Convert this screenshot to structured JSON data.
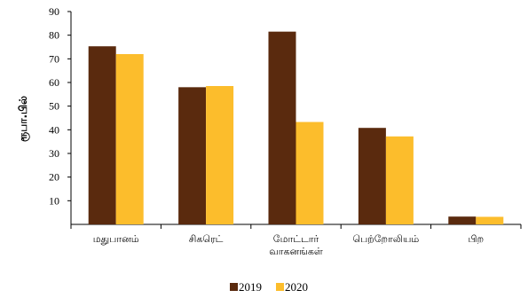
{
  "chart_data": {
    "type": "bar",
    "ylabel": "ரூபா.பில்",
    "xlabel": "",
    "ylim": [
      0,
      90
    ],
    "yticks": [
      10,
      20,
      30,
      40,
      50,
      60,
      70,
      80,
      90
    ],
    "grid": false,
    "legend": "bottom",
    "categories": [
      [
        "மதுபானம்"
      ],
      [
        "சிகரெட்"
      ],
      [
        "மோட்டார்",
        "வாகனங்கள்"
      ],
      [
        "பெற்றோலியம்"
      ],
      [
        "பிற"
      ]
    ],
    "series": [
      {
        "name": "2019",
        "color": "#5a2a0e",
        "values": [
          75.3,
          58.0,
          81.5,
          40.8,
          3.3
        ]
      },
      {
        "name": "2020",
        "color": "#fcbd2c",
        "values": [
          72.0,
          58.5,
          43.3,
          37.2,
          3.2
        ]
      }
    ]
  }
}
